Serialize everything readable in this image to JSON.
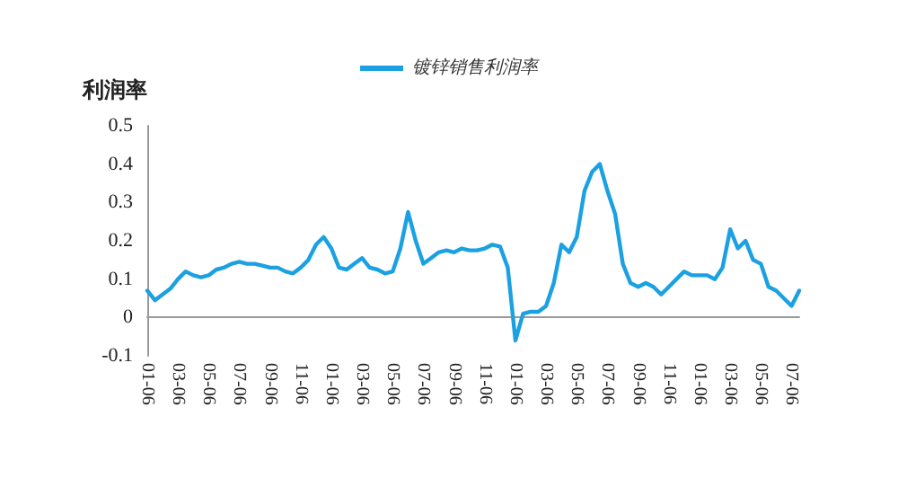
{
  "chart_data": {
    "type": "line",
    "ylabel": "利润率",
    "legend": "top",
    "marker": "none",
    "grid": false,
    "categories": [
      "01-06",
      null,
      null,
      null,
      "03-06",
      null,
      null,
      null,
      "05-06",
      null,
      null,
      null,
      "07-06",
      null,
      null,
      null,
      "09-06",
      null,
      null,
      null,
      "11-06",
      null,
      null,
      null,
      "01-06",
      null,
      null,
      null,
      "03-06",
      null,
      null,
      null,
      "05-06",
      null,
      null,
      null,
      "07-06",
      null,
      null,
      null,
      "09-06",
      null,
      null,
      null,
      "11-06",
      null,
      null,
      null,
      "01-06",
      null,
      null,
      null,
      "03-06",
      null,
      null,
      null,
      "05-06",
      null,
      null,
      null,
      "07-06",
      null,
      null,
      null,
      "09-06",
      null,
      null,
      null,
      "11-06",
      null,
      null,
      null,
      "01-06",
      null,
      null,
      null,
      "03-06",
      null,
      null,
      null,
      "05-06",
      null,
      null,
      null,
      "07-06",
      null
    ],
    "series": [
      {
        "name": "镀锌销售利润率",
        "color": "#1ba1e2",
        "values": [
          0.07,
          0.045,
          0.06,
          0.075,
          0.1,
          0.12,
          0.11,
          0.105,
          0.11,
          0.125,
          0.13,
          0.14,
          0.145,
          0.14,
          0.14,
          0.135,
          0.13,
          0.13,
          0.12,
          0.115,
          0.13,
          0.15,
          0.19,
          0.21,
          0.18,
          0.13,
          0.125,
          0.14,
          0.155,
          0.13,
          0.125,
          0.115,
          0.12,
          0.18,
          0.275,
          0.2,
          0.14,
          0.155,
          0.17,
          0.175,
          0.17,
          0.18,
          0.175,
          0.175,
          0.18,
          0.19,
          0.185,
          0.13,
          -0.06,
          0.01,
          0.015,
          0.015,
          0.03,
          0.09,
          0.19,
          0.17,
          0.21,
          0.33,
          0.38,
          0.4,
          0.33,
          0.27,
          0.14,
          0.09,
          0.08,
          0.09,
          0.08,
          0.06,
          0.08,
          0.1,
          0.12,
          0.11,
          0.11,
          0.11,
          0.1,
          0.13,
          0.23,
          0.18,
          0.2,
          0.15,
          0.14,
          0.08,
          0.07,
          0.05,
          0.03,
          0.07
        ]
      }
    ],
    "ylim": [
      -0.1,
      0.5
    ],
    "yticks": [
      -0.1,
      0,
      0.1,
      0.2,
      0.3,
      0.4,
      0.5
    ]
  }
}
